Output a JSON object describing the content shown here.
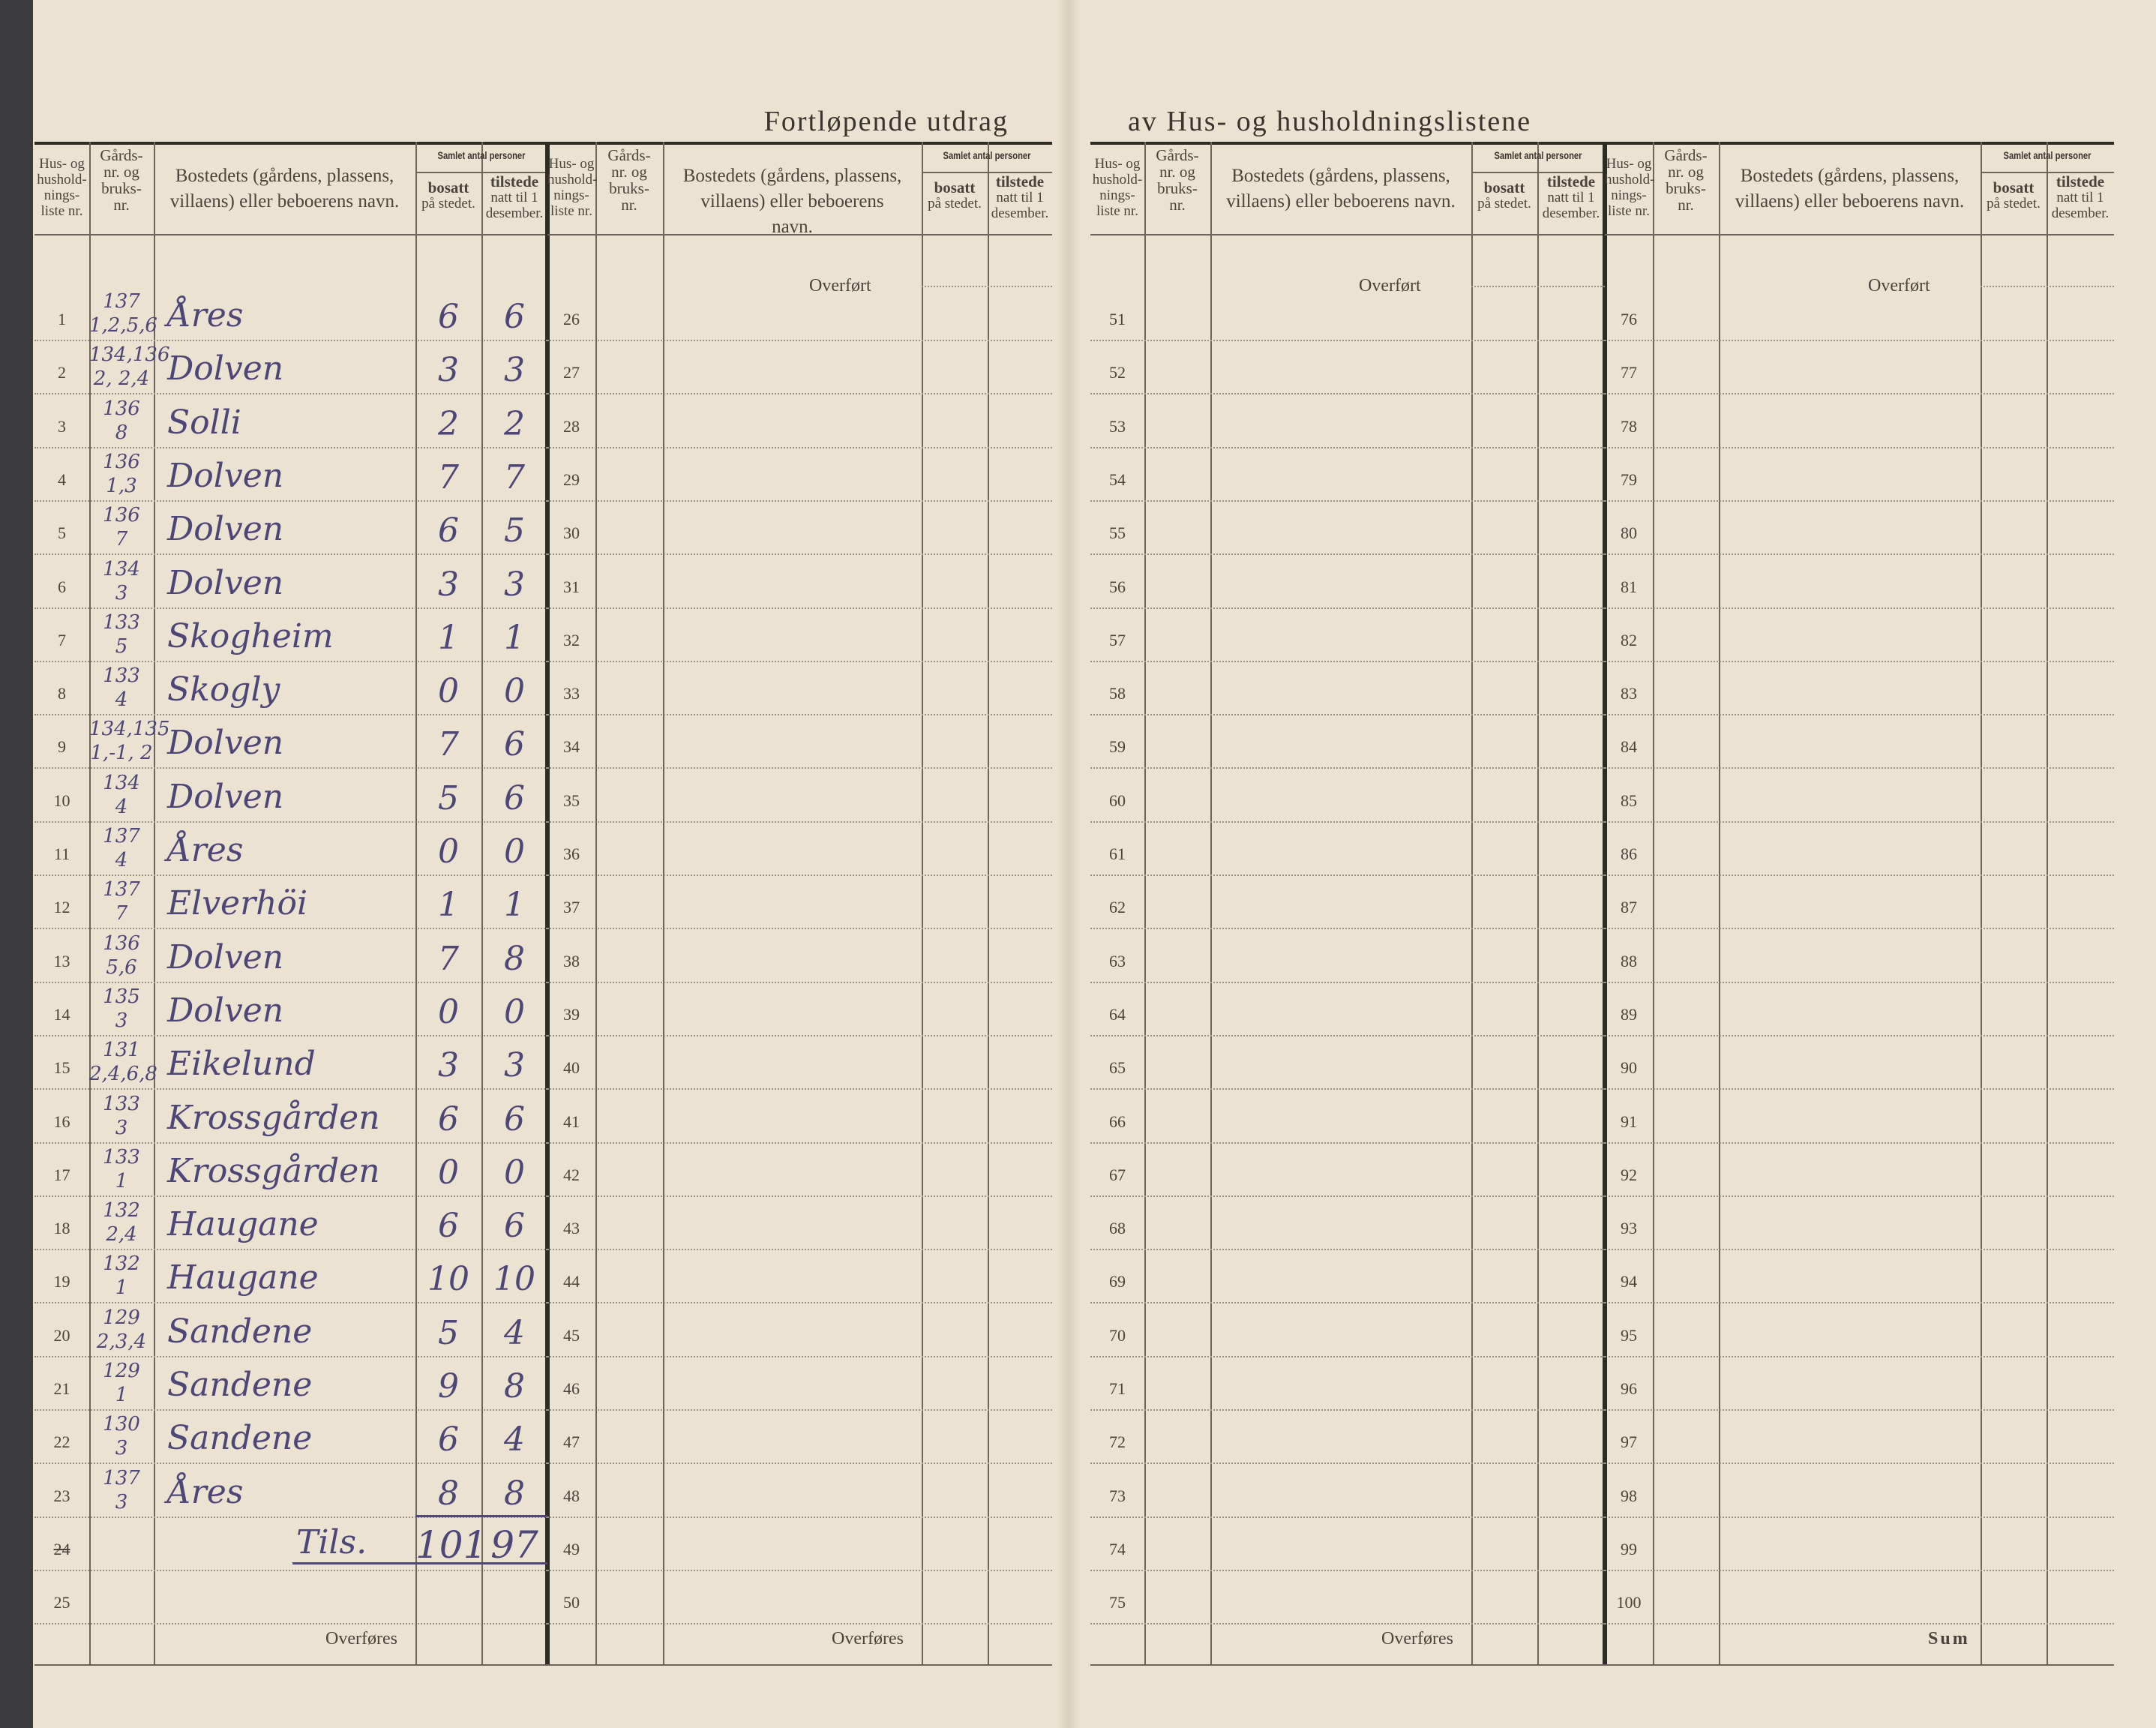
{
  "title_left": "Fortløpende utdrag",
  "title_right": "av Hus- og husholdningslistene",
  "headers": {
    "list_no": "Hus- og hushold- nings- liste nr.",
    "farm_no": "Gårds- nr. og bruks- nr.",
    "residence": "Bostedets (gårdens, plassens, villaens) eller beboerens navn.",
    "group": "Samlet antal personer",
    "resident_bold": "bosatt",
    "resident_rest": "på stedet.",
    "present_bold": "tilstede",
    "present_rest": "natt til 1 desember."
  },
  "carried_in": "Overført",
  "carried_out": "Overføres",
  "sum_label": "Sum",
  "total": {
    "row_no": "24",
    "label": "Tils.",
    "bosatt": "101",
    "tilstede": "97"
  },
  "block1_last_row": "25",
  "entries": [
    {
      "no": "1",
      "gard": "137",
      "bruk": "1,2,5,6",
      "name": "Åres",
      "bosatt": "6",
      "tilstede": "6"
    },
    {
      "no": "2",
      "gard": "134,136",
      "bruk": "2, 2,4",
      "name": "Dolven",
      "bosatt": "3",
      "tilstede": "3"
    },
    {
      "no": "3",
      "gard": "136",
      "bruk": "8",
      "name": "Solli",
      "bosatt": "2",
      "tilstede": "2"
    },
    {
      "no": "4",
      "gard": "136",
      "bruk": "1,3",
      "name": "Dolven",
      "bosatt": "7",
      "tilstede": "7"
    },
    {
      "no": "5",
      "gard": "136",
      "bruk": "7",
      "name": "Dolven",
      "bosatt": "6",
      "tilstede": "5"
    },
    {
      "no": "6",
      "gard": "134",
      "bruk": "3",
      "name": "Dolven",
      "bosatt": "3",
      "tilstede": "3"
    },
    {
      "no": "7",
      "gard": "133",
      "bruk": "5",
      "name": "Skogheim",
      "bosatt": "1",
      "tilstede": "1"
    },
    {
      "no": "8",
      "gard": "133",
      "bruk": "4",
      "name": "Skogly",
      "bosatt": "0",
      "tilstede": "0"
    },
    {
      "no": "9",
      "gard": "134,135",
      "bruk": "1,-1, 2",
      "name": "Dolven",
      "bosatt": "7",
      "tilstede": "6"
    },
    {
      "no": "10",
      "gard": "134",
      "bruk": "4",
      "name": "Dolven",
      "bosatt": "5",
      "tilstede": "6"
    },
    {
      "no": "11",
      "gard": "137",
      "bruk": "4",
      "name": "Åres",
      "bosatt": "0",
      "tilstede": "0"
    },
    {
      "no": "12",
      "gard": "137",
      "bruk": "7",
      "name": "Elverhöi",
      "bosatt": "1",
      "tilstede": "1"
    },
    {
      "no": "13",
      "gard": "136",
      "bruk": "5,6",
      "name": "Dolven",
      "bosatt": "7",
      "tilstede": "8"
    },
    {
      "no": "14",
      "gard": "135",
      "bruk": "3",
      "name": "Dolven",
      "bosatt": "0",
      "tilstede": "0"
    },
    {
      "no": "15",
      "gard": "131",
      "bruk": "2,4,6,8",
      "name": "Eikelund",
      "bosatt": "3",
      "tilstede": "3"
    },
    {
      "no": "16",
      "gard": "133",
      "bruk": "3",
      "name": "Krossgården",
      "bosatt": "6",
      "tilstede": "6"
    },
    {
      "no": "17",
      "gard": "133",
      "bruk": "1",
      "name": "Krossgården",
      "bosatt": "0",
      "tilstede": "0"
    },
    {
      "no": "18",
      "gard": "132",
      "bruk": "2,4",
      "name": "Haugane",
      "bosatt": "6",
      "tilstede": "6"
    },
    {
      "no": "19",
      "gard": "132",
      "bruk": "1",
      "name": "Haugane",
      "bosatt": "10",
      "tilstede": "10"
    },
    {
      "no": "20",
      "gard": "129",
      "bruk": "2,3,4",
      "name": "Sandene",
      "bosatt": "5",
      "tilstede": "4"
    },
    {
      "no": "21",
      "gard": "129",
      "bruk": "1",
      "name": "Sandene",
      "bosatt": "9",
      "tilstede": "8"
    },
    {
      "no": "22",
      "gard": "130",
      "bruk": "3",
      "name": "Sandene",
      "bosatt": "6",
      "tilstede": "4"
    },
    {
      "no": "23",
      "gard": "137",
      "bruk": "3",
      "name": "Åres",
      "bosatt": "8",
      "tilstede": "8"
    }
  ],
  "block2_rows": [
    "26",
    "27",
    "28",
    "29",
    "30",
    "31",
    "32",
    "33",
    "34",
    "35",
    "36",
    "37",
    "38",
    "39",
    "40",
    "41",
    "42",
    "43",
    "44",
    "45",
    "46",
    "47",
    "48",
    "49",
    "50"
  ],
  "block3_rows": [
    "51",
    "52",
    "53",
    "54",
    "55",
    "56",
    "57",
    "58",
    "59",
    "60",
    "61",
    "62",
    "63",
    "64",
    "65",
    "66",
    "67",
    "68",
    "69",
    "70",
    "71",
    "72",
    "73",
    "74",
    "75"
  ],
  "block4_rows": [
    "76",
    "77",
    "78",
    "79",
    "80",
    "81",
    "82",
    "83",
    "84",
    "85",
    "86",
    "87",
    "88",
    "89",
    "90",
    "91",
    "92",
    "93",
    "94",
    "95",
    "96",
    "97",
    "98",
    "99",
    "100"
  ],
  "colors": {
    "paper": "#ebe2d1",
    "ink": "#4d4677",
    "print": "#3a352e"
  }
}
